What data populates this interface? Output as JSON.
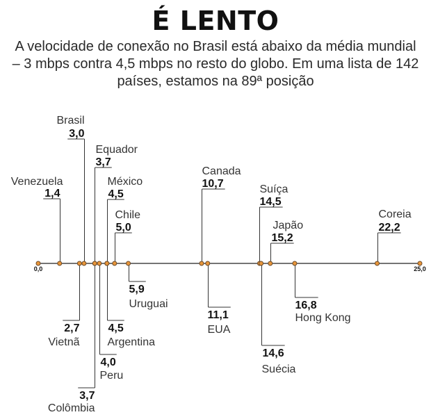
{
  "title": "É LENTO",
  "subtitle": "A velocidade de conexão no Brasil está abaixo da média mundial – 3  mbps contra 4,5 mbps no resto do globo. Em uma lista de 142 países, estamos na 89ª posição",
  "colors": {
    "axis": "#222222",
    "dot": "#e8963a",
    "dot_stroke": "#6b4a2a",
    "leader": "#333333"
  },
  "chart_data": {
    "type": "scatter",
    "xlim": [
      0,
      25
    ],
    "axis_labels": [
      "0,0",
      "25,0"
    ],
    "points": [
      {
        "country": "Venezuela",
        "value": 1.4,
        "label": "1,4",
        "side": "above"
      },
      {
        "country": "Brasil",
        "value": 3.0,
        "label": "3,0",
        "side": "above"
      },
      {
        "country": "Equador",
        "value": 3.7,
        "label": "3,7",
        "side": "above"
      },
      {
        "country": "México",
        "value": 4.5,
        "label": "4,5",
        "side": "above"
      },
      {
        "country": "Chile",
        "value": 5.0,
        "label": "5,0",
        "side": "above"
      },
      {
        "country": "Canada",
        "value": 10.7,
        "label": "10,7",
        "side": "above"
      },
      {
        "country": "Suíça",
        "value": 14.5,
        "label": "14,5",
        "side": "above"
      },
      {
        "country": "Japão",
        "value": 15.2,
        "label": "15,2",
        "side": "above"
      },
      {
        "country": "Coreia",
        "value": 22.2,
        "label": "22,2",
        "side": "above"
      },
      {
        "country": "Vietnã",
        "value": 2.7,
        "label": "2,7",
        "side": "below"
      },
      {
        "country": "Colômbia",
        "value": 3.7,
        "label": "3,7",
        "side": "below"
      },
      {
        "country": "Peru",
        "value": 4.0,
        "label": "4,0",
        "side": "below"
      },
      {
        "country": "Argentina",
        "value": 4.5,
        "label": "4,5",
        "side": "below"
      },
      {
        "country": "Uruguai",
        "value": 5.9,
        "label": "5,9",
        "side": "below"
      },
      {
        "country": "EUA",
        "value": 11.1,
        "label": "11,1",
        "side": "below"
      },
      {
        "country": "Hong Kong",
        "value": 16.8,
        "label": "16,8",
        "side": "below"
      },
      {
        "country": "Suécia",
        "value": 14.6,
        "label": "14,6",
        "side": "below"
      }
    ]
  }
}
